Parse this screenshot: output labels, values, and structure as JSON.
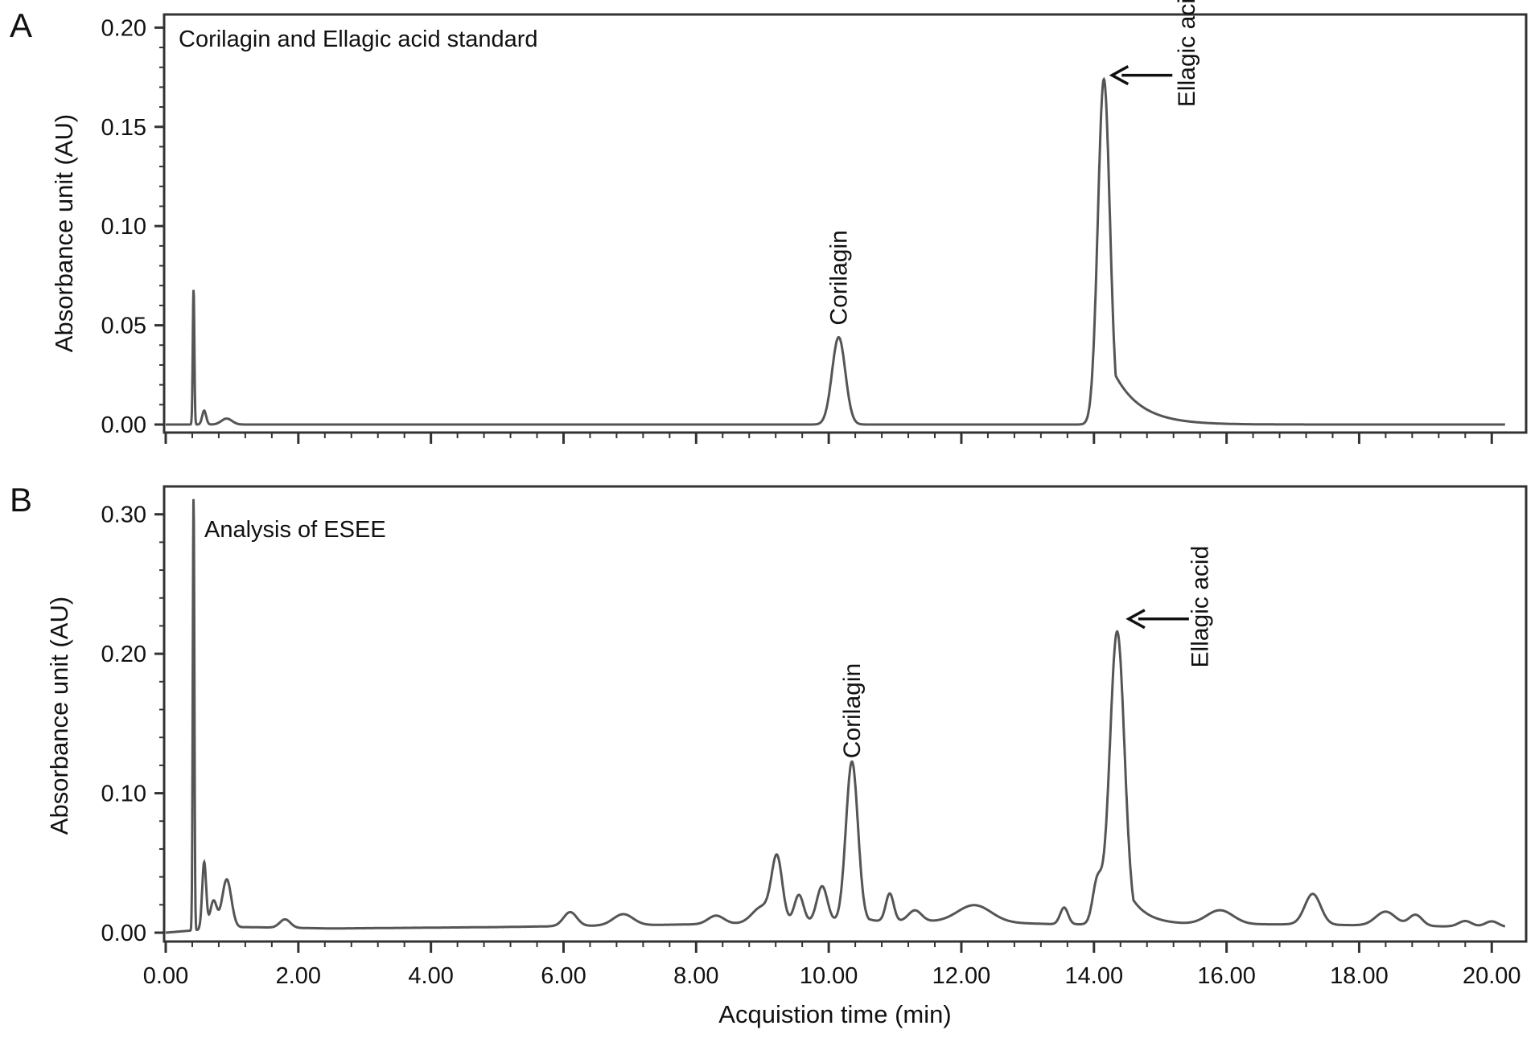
{
  "colors": {
    "trace": "#555555",
    "axis": "#333333",
    "text": "#111111",
    "background": "#ffffff"
  },
  "shared": {
    "x_axis_label": "Acquistion time (min)",
    "x_ticks": [
      "0.00",
      "2.00",
      "4.00",
      "6.00",
      "8.00",
      "10.00",
      "12.00",
      "14.00",
      "16.00",
      "18.00",
      "20.00"
    ]
  },
  "chart_data": [
    {
      "type": "line",
      "panel_letter": "A",
      "title": "Corilagin and Ellagic acid standard",
      "xlabel": "Acquistion time (min)",
      "ylabel": "Absorbance unit (AU)",
      "xlim": [
        0,
        20.3
      ],
      "ylim": [
        0,
        0.205
      ],
      "y_ticks": [
        "0.00",
        "0.05",
        "0.10",
        "0.15",
        "0.20"
      ],
      "y_tick_values": [
        0,
        0.05,
        0.1,
        0.15,
        0.2
      ],
      "grid": false,
      "peaks": [
        {
          "x": 0.42,
          "y": 0.068,
          "w": 0.012
        },
        {
          "x": 0.58,
          "y": 0.007,
          "w": 0.03
        },
        {
          "x": 0.92,
          "y": 0.003,
          "w": 0.08
        },
        {
          "x": 10.15,
          "y": 0.044,
          "w": 0.1,
          "tail": 0.0
        },
        {
          "x": 14.15,
          "y": 0.174,
          "w": 0.09,
          "tail": 0.4
        }
      ],
      "annotations": [
        {
          "text": "Corilagin",
          "x": 10.15,
          "y": 0.05,
          "arrow": false
        },
        {
          "text": "Ellagic acid",
          "x": 15.4,
          "y": 0.16,
          "arrow": true,
          "arrow_to": [
            14.2,
            0.176
          ]
        }
      ]
    },
    {
      "type": "line",
      "panel_letter": "B",
      "title": "Analysis of ESEE",
      "xlabel": "Acquistion time (min)",
      "ylabel": "Absorbance unit (AU)",
      "xlim": [
        0,
        20.3
      ],
      "ylim": [
        0,
        0.32
      ],
      "y_ticks": [
        "0.00",
        "0.10",
        "0.20",
        "0.30"
      ],
      "y_tick_values": [
        0,
        0.1,
        0.2,
        0.3
      ],
      "grid": false,
      "peaks": [
        {
          "x": 0.42,
          "y": 0.31,
          "w": 0.012
        },
        {
          "x": 0.58,
          "y": 0.048,
          "w": 0.03
        },
        {
          "x": 0.72,
          "y": 0.02,
          "w": 0.05
        },
        {
          "x": 0.92,
          "y": 0.035,
          "w": 0.07
        },
        {
          "x": 1.8,
          "y": 0.006,
          "w": 0.08
        },
        {
          "x": 6.1,
          "y": 0.01,
          "w": 0.1
        },
        {
          "x": 6.9,
          "y": 0.008,
          "w": 0.15
        },
        {
          "x": 8.3,
          "y": 0.006,
          "w": 0.12
        },
        {
          "x": 9.0,
          "y": 0.012,
          "w": 0.15
        },
        {
          "x": 9.22,
          "y": 0.045,
          "w": 0.08
        },
        {
          "x": 9.55,
          "y": 0.02,
          "w": 0.07
        },
        {
          "x": 9.9,
          "y": 0.026,
          "w": 0.08
        },
        {
          "x": 10.35,
          "y": 0.115,
          "w": 0.09,
          "tail": 0.1
        },
        {
          "x": 10.92,
          "y": 0.02,
          "w": 0.06
        },
        {
          "x": 11.3,
          "y": 0.008,
          "w": 0.1
        },
        {
          "x": 12.2,
          "y": 0.012,
          "w": 0.25
        },
        {
          "x": 13.55,
          "y": 0.012,
          "w": 0.06
        },
        {
          "x": 14.05,
          "y": 0.03,
          "w": 0.07
        },
        {
          "x": 14.35,
          "y": 0.21,
          "w": 0.11,
          "tail": 0.25
        },
        {
          "x": 15.9,
          "y": 0.01,
          "w": 0.2
        },
        {
          "x": 17.3,
          "y": 0.022,
          "w": 0.12
        },
        {
          "x": 18.4,
          "y": 0.01,
          "w": 0.15
        },
        {
          "x": 18.85,
          "y": 0.008,
          "w": 0.1
        },
        {
          "x": 19.6,
          "y": 0.004,
          "w": 0.1
        },
        {
          "x": 20.0,
          "y": 0.004,
          "w": 0.1
        }
      ],
      "baseline": [
        [
          0,
          0.0
        ],
        [
          0.5,
          0.002
        ],
        [
          1.2,
          0.004
        ],
        [
          2.5,
          0.003
        ],
        [
          5.0,
          0.004
        ],
        [
          8.0,
          0.006
        ],
        [
          10.8,
          0.008
        ],
        [
          12.0,
          0.008
        ],
        [
          13.5,
          0.006
        ],
        [
          15.5,
          0.006
        ],
        [
          17.0,
          0.006
        ],
        [
          18.5,
          0.005
        ],
        [
          20.2,
          0.004
        ]
      ],
      "annotations": [
        {
          "text": "Corilagin",
          "x": 10.35,
          "y": 0.125,
          "arrow": false
        },
        {
          "text": "Ellagic acid",
          "x": 15.6,
          "y": 0.19,
          "arrow": true,
          "arrow_to": [
            14.45,
            0.225
          ]
        }
      ]
    }
  ]
}
